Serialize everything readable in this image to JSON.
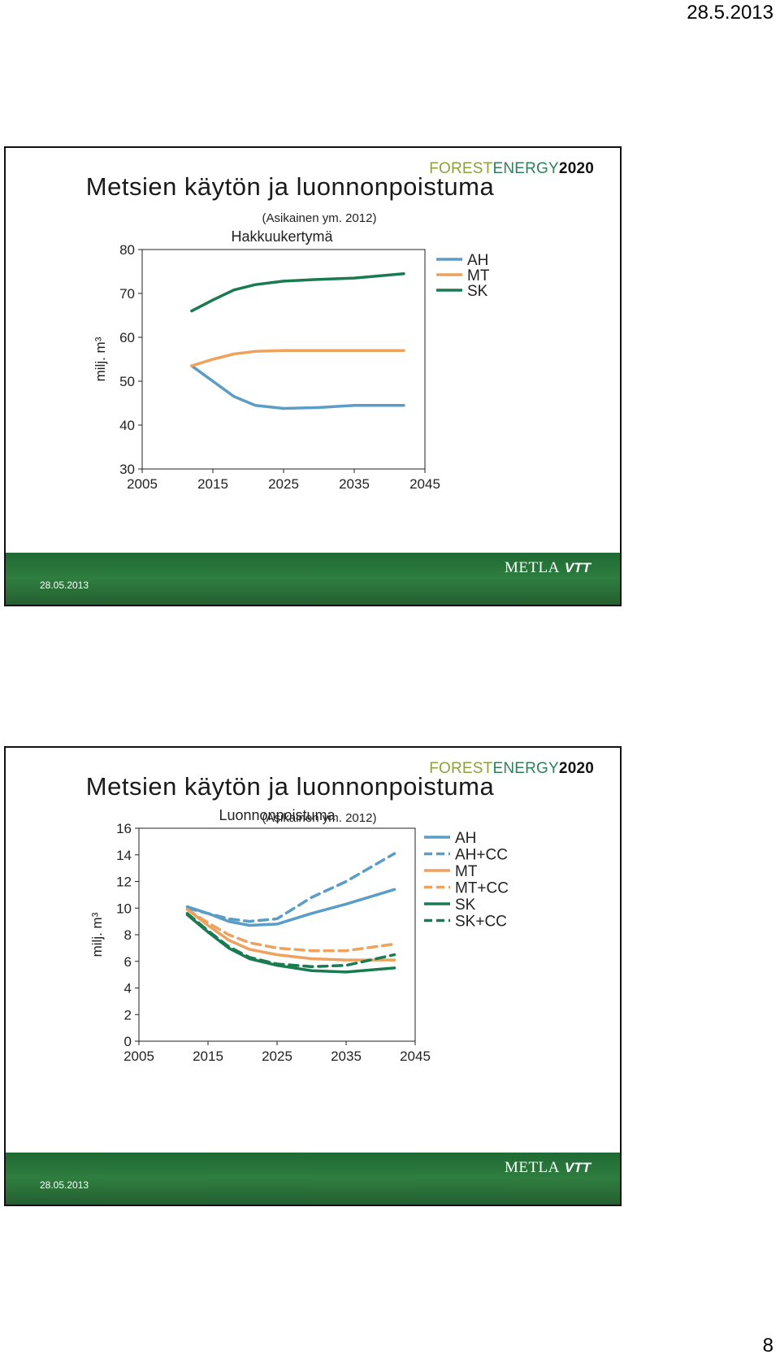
{
  "page": {
    "date": "28.5.2013",
    "number": "8"
  },
  "slides": [
    {
      "brand": {
        "part1": "FOREST",
        "part2": "ENERGY",
        "part3": "2020"
      },
      "title": "Metsien käytön ja luonnonpoistuma",
      "subtitle": "(Asikainen ym. 2012)",
      "footer_date": "28.05.2013",
      "logos": {
        "metla": "METLA",
        "vtt": "VTT"
      }
    },
    {
      "brand": {
        "part1": "FOREST",
        "part2": "ENERGY",
        "part3": "2020"
      },
      "title": "Metsien käytön ja luonnonpoistuma",
      "subtitle": "(Asikainen ym. 2012)",
      "footer_date": "28.05.2013",
      "logos": {
        "metla": "METLA",
        "vtt": "VTT"
      }
    }
  ],
  "chart_data": [
    {
      "type": "line",
      "title": "Hakkuukertymä",
      "ylabel": "milj. m³",
      "xlabel": "",
      "xlim": [
        2005,
        2045
      ],
      "ylim": [
        30,
        80
      ],
      "xticks": [
        2005,
        2015,
        2025,
        2035,
        2045
      ],
      "yticks": [
        30,
        40,
        50,
        60,
        70,
        80
      ],
      "grid": false,
      "legend": "right",
      "x": [
        2012,
        2015,
        2018,
        2021,
        2025,
        2030,
        2035,
        2042
      ],
      "series": [
        {
          "name": "AH",
          "color": "#5b9dc6",
          "dash": false,
          "values": [
            53.5,
            50.0,
            46.5,
            44.5,
            43.8,
            44.0,
            44.5,
            44.5
          ]
        },
        {
          "name": "MT",
          "color": "#eea25f",
          "dash": false,
          "values": [
            53.5,
            55.0,
            56.2,
            56.8,
            57.0,
            57.0,
            57.0,
            57.0
          ]
        },
        {
          "name": "SK",
          "color": "#1a7a52",
          "dash": false,
          "values": [
            66.0,
            68.5,
            70.8,
            72.0,
            72.8,
            73.2,
            73.5,
            74.5
          ]
        }
      ]
    },
    {
      "type": "line",
      "title": "Luonnonpoistuma",
      "ylabel": "milj. m³",
      "xlabel": "",
      "xlim": [
        2005,
        2045
      ],
      "ylim": [
        0,
        16
      ],
      "xticks": [
        2005,
        2015,
        2025,
        2035,
        2045
      ],
      "yticks": [
        0,
        2,
        4,
        6,
        8,
        10,
        12,
        14,
        16
      ],
      "grid": false,
      "legend": "right",
      "x": [
        2012,
        2015,
        2018,
        2021,
        2025,
        2030,
        2035,
        2042
      ],
      "series": [
        {
          "name": "AH",
          "color": "#5b9dc6",
          "dash": false,
          "values": [
            10.1,
            9.6,
            9.0,
            8.7,
            8.8,
            9.6,
            10.3,
            11.4
          ]
        },
        {
          "name": "AH+CC",
          "color": "#5b9dc6",
          "dash": true,
          "values": [
            10.0,
            9.6,
            9.2,
            9.0,
            9.2,
            10.8,
            12.0,
            14.1
          ]
        },
        {
          "name": "MT",
          "color": "#eea25f",
          "dash": false,
          "values": [
            9.9,
            8.7,
            7.6,
            6.9,
            6.5,
            6.2,
            6.1,
            6.1
          ]
        },
        {
          "name": "MT+CC",
          "color": "#eea25f",
          "dash": true,
          "values": [
            9.9,
            8.9,
            8.0,
            7.4,
            7.0,
            6.8,
            6.8,
            7.3
          ]
        },
        {
          "name": "SK",
          "color": "#1a7a52",
          "dash": false,
          "values": [
            9.5,
            8.2,
            7.0,
            6.2,
            5.7,
            5.3,
            5.2,
            5.5
          ]
        },
        {
          "name": "SK+CC",
          "color": "#1a7a52",
          "dash": true,
          "values": [
            9.6,
            8.3,
            7.1,
            6.3,
            5.8,
            5.6,
            5.7,
            6.5
          ]
        }
      ]
    }
  ]
}
